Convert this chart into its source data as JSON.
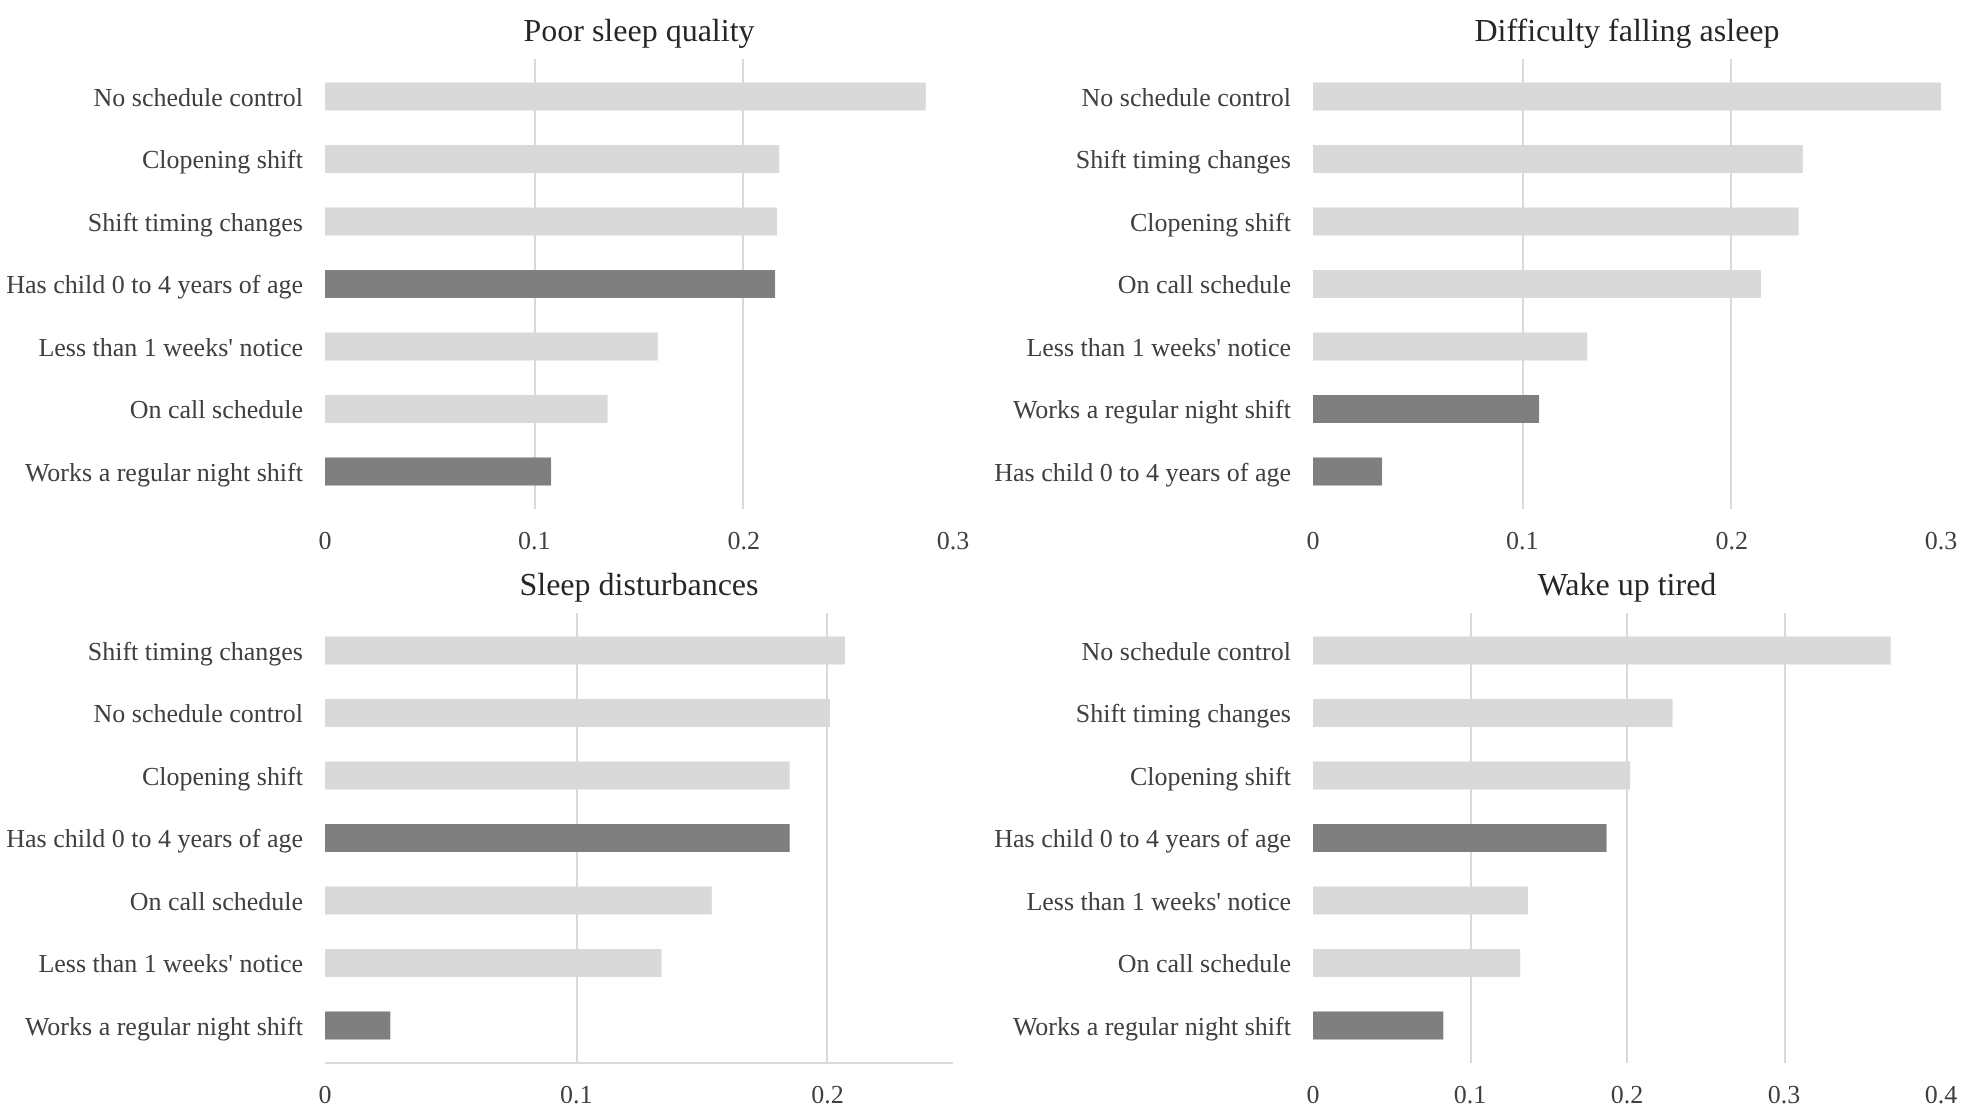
{
  "chart_data": [
    {
      "type": "bar",
      "orientation": "horizontal",
      "title": "Poor sleep quality",
      "categories": [
        "No schedule control",
        "Clopening shift",
        "Shift timing changes",
        "Has child 0 to 4 years of age",
        "Less than 1 weeks' notice",
        "On call schedule",
        "Works a regular night shift"
      ],
      "values": [
        0.287,
        0.217,
        0.216,
        0.215,
        0.159,
        0.135,
        0.108
      ],
      "colors": [
        "#d9d9d9",
        "#d9d9d9",
        "#d9d9d9",
        "#7f7f7f",
        "#d9d9d9",
        "#d9d9d9",
        "#7f7f7f"
      ],
      "xlim": [
        0,
        0.3
      ],
      "xticks": [
        0,
        0.1,
        0.2,
        0.3
      ],
      "grid": "x"
    },
    {
      "type": "bar",
      "orientation": "horizontal",
      "title": "Difficulty falling asleep",
      "categories": [
        "No schedule control",
        "Shift timing changes",
        "Clopening shift",
        "On call schedule",
        "Less than 1 weeks' notice",
        "Works a regular night shift",
        "Has child 0 to 4 years of age"
      ],
      "values": [
        0.3,
        0.234,
        0.232,
        0.214,
        0.131,
        0.108,
        0.033
      ],
      "colors": [
        "#d9d9d9",
        "#d9d9d9",
        "#d9d9d9",
        "#d9d9d9",
        "#d9d9d9",
        "#7f7f7f",
        "#7f7f7f"
      ],
      "xlim": [
        0,
        0.3
      ],
      "xticks": [
        0,
        0.1,
        0.2,
        0.3
      ],
      "grid": "x"
    },
    {
      "type": "bar",
      "orientation": "horizontal",
      "title": "Sleep disturbances",
      "categories": [
        "Shift timing changes",
        "No schedule control",
        "Clopening shift",
        "Has child 0 to 4 years of age",
        "On call schedule",
        "Less than 1 weeks' notice",
        "Works a regular night shift"
      ],
      "values": [
        0.207,
        0.201,
        0.185,
        0.185,
        0.154,
        0.134,
        0.026
      ],
      "colors": [
        "#d9d9d9",
        "#d9d9d9",
        "#d9d9d9",
        "#7f7f7f",
        "#d9d9d9",
        "#d9d9d9",
        "#7f7f7f"
      ],
      "xlim": [
        0,
        0.25
      ],
      "xticks": [
        0,
        0.1,
        0.2
      ],
      "grid": "x"
    },
    {
      "type": "bar",
      "orientation": "horizontal",
      "title": "Wake up tired",
      "categories": [
        "No schedule control",
        "Shift timing changes",
        "Clopening shift",
        "Has child 0 to 4 years of age",
        "Less than 1 weeks' notice",
        "On call schedule",
        "Works a regular night shift"
      ],
      "values": [
        0.368,
        0.229,
        0.202,
        0.187,
        0.137,
        0.132,
        0.083
      ],
      "colors": [
        "#d9d9d9",
        "#d9d9d9",
        "#d9d9d9",
        "#7f7f7f",
        "#d9d9d9",
        "#d9d9d9",
        "#7f7f7f"
      ],
      "xlim": [
        0,
        0.4
      ],
      "xticks": [
        0,
        0.1,
        0.2,
        0.3,
        0.4
      ],
      "grid": "x"
    }
  ]
}
